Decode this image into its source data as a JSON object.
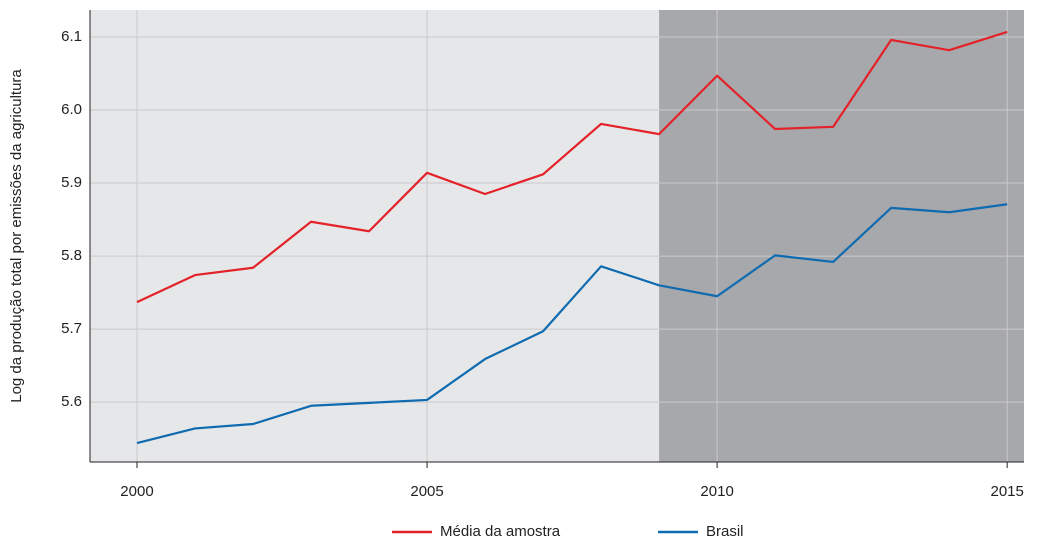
{
  "chart_data": {
    "type": "line",
    "y_label": "Log da produção total por emissões da agricultura",
    "x": [
      2000,
      2001,
      2002,
      2003,
      2004,
      2005,
      2006,
      2007,
      2008,
      2009,
      2010,
      2011,
      2012,
      2013,
      2014,
      2015
    ],
    "series": [
      {
        "name": "Média da amostra",
        "color": "#e32229",
        "values": [
          5.737,
          5.774,
          5.784,
          5.847,
          5.834,
          5.914,
          5.885,
          5.912,
          5.981,
          5.967,
          6.047,
          5.974,
          5.977,
          6.096,
          6.082,
          6.107
        ]
      },
      {
        "name": "Brasil",
        "color": "#0f6bb0",
        "values": [
          5.544,
          5.564,
          5.57,
          5.595,
          5.599,
          5.603,
          5.659,
          5.697,
          5.786,
          5.76,
          5.745,
          5.801,
          5.792,
          5.866,
          5.86,
          5.871
        ]
      }
    ],
    "xlim": [
      1999.19,
      2015.29
    ],
    "xticks": [
      2000,
      2005,
      2010,
      2015
    ],
    "ylim": [
      5.518,
      6.137
    ],
    "yticks": [
      5.6,
      5.7,
      5.8,
      5.9,
      {
        "value": 6,
        "label": "6.0"
      },
      6.1
    ],
    "grid": true,
    "background": "#e6e7e9",
    "shade": {
      "from": 2009,
      "color": "#a7a8ac"
    },
    "legend": "bottom"
  }
}
